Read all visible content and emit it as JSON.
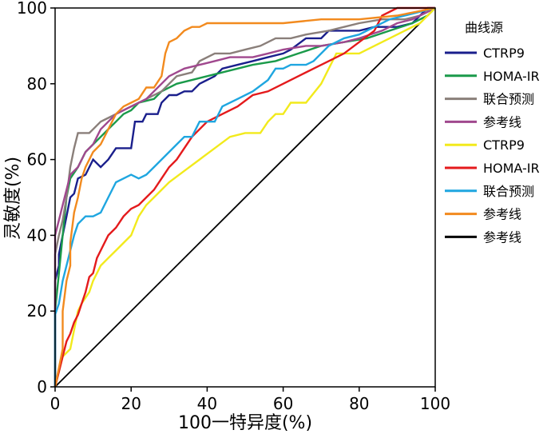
{
  "chart_data": {
    "type": "line",
    "title": "",
    "xlabel": "100一特异度(%)",
    "ylabel": "灵敏度(%)",
    "xlim": [
      0,
      100
    ],
    "ylim": [
      0,
      100
    ],
    "xticks": [
      0,
      20,
      40,
      60,
      80,
      100
    ],
    "yticks": [
      0,
      20,
      40,
      60,
      80,
      100
    ],
    "grid": false,
    "legend_title": "曲线源",
    "legend_position": "right",
    "series": [
      {
        "name": "CTRP9",
        "color": "#1a1f8c",
        "points": [
          [
            0,
            0
          ],
          [
            0,
            28
          ],
          [
            1,
            32
          ],
          [
            1,
            35
          ],
          [
            2,
            40
          ],
          [
            3,
            45
          ],
          [
            4,
            50
          ],
          [
            5,
            51
          ],
          [
            6,
            55
          ],
          [
            8,
            56
          ],
          [
            10,
            60
          ],
          [
            12,
            58
          ],
          [
            14,
            60
          ],
          [
            16,
            63
          ],
          [
            20,
            63
          ],
          [
            21,
            70
          ],
          [
            23,
            70
          ],
          [
            24,
            72
          ],
          [
            27,
            72
          ],
          [
            28,
            75
          ],
          [
            30,
            77
          ],
          [
            32,
            77
          ],
          [
            34,
            78
          ],
          [
            36,
            78
          ],
          [
            38,
            80
          ],
          [
            42,
            82
          ],
          [
            44,
            84
          ],
          [
            48,
            85
          ],
          [
            52,
            86
          ],
          [
            56,
            87
          ],
          [
            60,
            88
          ],
          [
            62,
            89
          ],
          [
            66,
            92
          ],
          [
            70,
            92
          ],
          [
            72,
            94
          ],
          [
            80,
            94
          ],
          [
            84,
            95
          ],
          [
            90,
            95
          ],
          [
            94,
            96
          ],
          [
            98,
            100
          ],
          [
            100,
            100
          ]
        ]
      },
      {
        "name": "HOMA-IR",
        "color": "#1a9a4a",
        "points": [
          [
            0,
            0
          ],
          [
            0,
            20
          ],
          [
            1,
            30
          ],
          [
            2,
            40
          ],
          [
            3,
            50
          ],
          [
            4,
            55
          ],
          [
            6,
            58
          ],
          [
            8,
            62
          ],
          [
            10,
            64
          ],
          [
            12,
            66
          ],
          [
            14,
            68
          ],
          [
            16,
            70
          ],
          [
            18,
            72
          ],
          [
            20,
            73
          ],
          [
            22,
            75
          ],
          [
            26,
            76
          ],
          [
            28,
            78
          ],
          [
            32,
            80
          ],
          [
            36,
            81
          ],
          [
            40,
            82
          ],
          [
            44,
            83
          ],
          [
            48,
            84
          ],
          [
            52,
            85
          ],
          [
            58,
            86
          ],
          [
            64,
            88
          ],
          [
            70,
            90
          ],
          [
            76,
            91
          ],
          [
            82,
            92
          ],
          [
            88,
            94
          ],
          [
            94,
            96
          ],
          [
            98,
            98
          ],
          [
            100,
            100
          ]
        ]
      },
      {
        "name": "联合预测",
        "color": "#8a7f7a",
        "points": [
          [
            0,
            0
          ],
          [
            0,
            35
          ],
          [
            1,
            40
          ],
          [
            2,
            44
          ],
          [
            3,
            50
          ],
          [
            4,
            58
          ],
          [
            5,
            63
          ],
          [
            6,
            67
          ],
          [
            9,
            67
          ],
          [
            10,
            68
          ],
          [
            12,
            70
          ],
          [
            14,
            71
          ],
          [
            16,
            72
          ],
          [
            20,
            74
          ],
          [
            24,
            76
          ],
          [
            28,
            78
          ],
          [
            30,
            80
          ],
          [
            32,
            82
          ],
          [
            36,
            83
          ],
          [
            38,
            86
          ],
          [
            42,
            88
          ],
          [
            46,
            88
          ],
          [
            50,
            89
          ],
          [
            54,
            90
          ],
          [
            58,
            92
          ],
          [
            62,
            92
          ],
          [
            66,
            93
          ],
          [
            72,
            94
          ],
          [
            76,
            95
          ],
          [
            80,
            96
          ],
          [
            86,
            97
          ],
          [
            92,
            97
          ],
          [
            96,
            98
          ],
          [
            100,
            100
          ]
        ]
      },
      {
        "name": "参考线",
        "color": "#a0488e",
        "points": [
          [
            0,
            0
          ],
          [
            0,
            40
          ],
          [
            1,
            44
          ],
          [
            2,
            48
          ],
          [
            3,
            52
          ],
          [
            4,
            56
          ],
          [
            6,
            58
          ],
          [
            8,
            62
          ],
          [
            10,
            64
          ],
          [
            12,
            68
          ],
          [
            14,
            70
          ],
          [
            16,
            72
          ],
          [
            20,
            74
          ],
          [
            24,
            76
          ],
          [
            28,
            80
          ],
          [
            30,
            82
          ],
          [
            34,
            84
          ],
          [
            38,
            85
          ],
          [
            42,
            86
          ],
          [
            46,
            87
          ],
          [
            52,
            87
          ],
          [
            56,
            88
          ],
          [
            60,
            89
          ],
          [
            66,
            90
          ],
          [
            70,
            90
          ],
          [
            76,
            91
          ],
          [
            80,
            92
          ],
          [
            86,
            94
          ],
          [
            90,
            96
          ],
          [
            94,
            97
          ],
          [
            100,
            100
          ]
        ]
      },
      {
        "name": "CTRP9",
        "color": "#f2ea1c",
        "points": [
          [
            0,
            0
          ],
          [
            1,
            4
          ],
          [
            2,
            8
          ],
          [
            4,
            10
          ],
          [
            5,
            15
          ],
          [
            6,
            20
          ],
          [
            7,
            22
          ],
          [
            9,
            25
          ],
          [
            10,
            28
          ],
          [
            12,
            32
          ],
          [
            14,
            34
          ],
          [
            16,
            36
          ],
          [
            18,
            38
          ],
          [
            20,
            40
          ],
          [
            22,
            45
          ],
          [
            24,
            48
          ],
          [
            26,
            50
          ],
          [
            28,
            52
          ],
          [
            30,
            54
          ],
          [
            34,
            57
          ],
          [
            38,
            60
          ],
          [
            42,
            63
          ],
          [
            46,
            66
          ],
          [
            50,
            67
          ],
          [
            54,
            67
          ],
          [
            56,
            70
          ],
          [
            58,
            72
          ],
          [
            60,
            72
          ],
          [
            62,
            75
          ],
          [
            66,
            75
          ],
          [
            70,
            80
          ],
          [
            72,
            84
          ],
          [
            74,
            88
          ],
          [
            80,
            88
          ],
          [
            84,
            90
          ],
          [
            88,
            92
          ],
          [
            92,
            94
          ],
          [
            96,
            96
          ],
          [
            100,
            100
          ]
        ]
      },
      {
        "name": "HOMA-IR",
        "color": "#e41a1c",
        "points": [
          [
            0,
            0
          ],
          [
            1,
            4
          ],
          [
            2,
            8
          ],
          [
            3,
            12
          ],
          [
            4,
            14
          ],
          [
            5,
            17
          ],
          [
            6,
            19
          ],
          [
            7,
            22
          ],
          [
            8,
            25
          ],
          [
            9,
            29
          ],
          [
            10,
            30
          ],
          [
            11,
            34
          ],
          [
            12,
            36
          ],
          [
            14,
            40
          ],
          [
            16,
            42
          ],
          [
            18,
            45
          ],
          [
            20,
            47
          ],
          [
            22,
            48
          ],
          [
            24,
            50
          ],
          [
            26,
            52
          ],
          [
            28,
            55
          ],
          [
            30,
            58
          ],
          [
            32,
            60
          ],
          [
            34,
            63
          ],
          [
            36,
            66
          ],
          [
            38,
            68
          ],
          [
            40,
            70
          ],
          [
            44,
            72
          ],
          [
            48,
            74
          ],
          [
            52,
            77
          ],
          [
            56,
            78
          ],
          [
            60,
            80
          ],
          [
            64,
            82
          ],
          [
            68,
            84
          ],
          [
            72,
            86
          ],
          [
            76,
            88
          ],
          [
            80,
            91
          ],
          [
            84,
            94
          ],
          [
            86,
            98
          ],
          [
            90,
            100
          ],
          [
            100,
            100
          ]
        ]
      },
      {
        "name": "联合预测",
        "color": "#1fa6e0",
        "points": [
          [
            0,
            0
          ],
          [
            0,
            19
          ],
          [
            1,
            22
          ],
          [
            2,
            28
          ],
          [
            3,
            32
          ],
          [
            4,
            36
          ],
          [
            5,
            40
          ],
          [
            6,
            43
          ],
          [
            8,
            45
          ],
          [
            10,
            45
          ],
          [
            12,
            46
          ],
          [
            14,
            50
          ],
          [
            16,
            54
          ],
          [
            18,
            55
          ],
          [
            20,
            56
          ],
          [
            22,
            55
          ],
          [
            24,
            56
          ],
          [
            26,
            58
          ],
          [
            30,
            62
          ],
          [
            32,
            64
          ],
          [
            34,
            66
          ],
          [
            36,
            66
          ],
          [
            38,
            70
          ],
          [
            42,
            70
          ],
          [
            44,
            74
          ],
          [
            48,
            76
          ],
          [
            52,
            78
          ],
          [
            56,
            81
          ],
          [
            58,
            84
          ],
          [
            60,
            84
          ],
          [
            62,
            85
          ],
          [
            66,
            85
          ],
          [
            68,
            86
          ],
          [
            70,
            88
          ],
          [
            72,
            90
          ],
          [
            76,
            92
          ],
          [
            80,
            93
          ],
          [
            84,
            95
          ],
          [
            88,
            97
          ],
          [
            92,
            98
          ],
          [
            96,
            99
          ],
          [
            100,
            100
          ]
        ]
      },
      {
        "name": "参考线",
        "color": "#f28a1e",
        "points": [
          [
            0,
            0
          ],
          [
            1,
            5
          ],
          [
            2,
            10
          ],
          [
            2,
            20
          ],
          [
            3,
            28
          ],
          [
            4,
            32
          ],
          [
            4,
            38
          ],
          [
            5,
            46
          ],
          [
            6,
            50
          ],
          [
            7,
            55
          ],
          [
            8,
            58
          ],
          [
            10,
            62
          ],
          [
            12,
            64
          ],
          [
            14,
            68
          ],
          [
            16,
            72
          ],
          [
            18,
            74
          ],
          [
            20,
            75
          ],
          [
            22,
            76
          ],
          [
            24,
            79
          ],
          [
            26,
            79
          ],
          [
            28,
            82
          ],
          [
            29,
            88
          ],
          [
            30,
            91
          ],
          [
            32,
            92
          ],
          [
            34,
            94
          ],
          [
            36,
            95
          ],
          [
            38,
            95
          ],
          [
            40,
            96
          ],
          [
            50,
            96
          ],
          [
            60,
            96
          ],
          [
            70,
            97
          ],
          [
            80,
            97
          ],
          [
            90,
            98
          ],
          [
            100,
            100
          ]
        ]
      },
      {
        "name": "参考线",
        "color": "#000000",
        "points": [
          [
            0,
            0
          ],
          [
            100,
            100
          ]
        ]
      }
    ]
  }
}
